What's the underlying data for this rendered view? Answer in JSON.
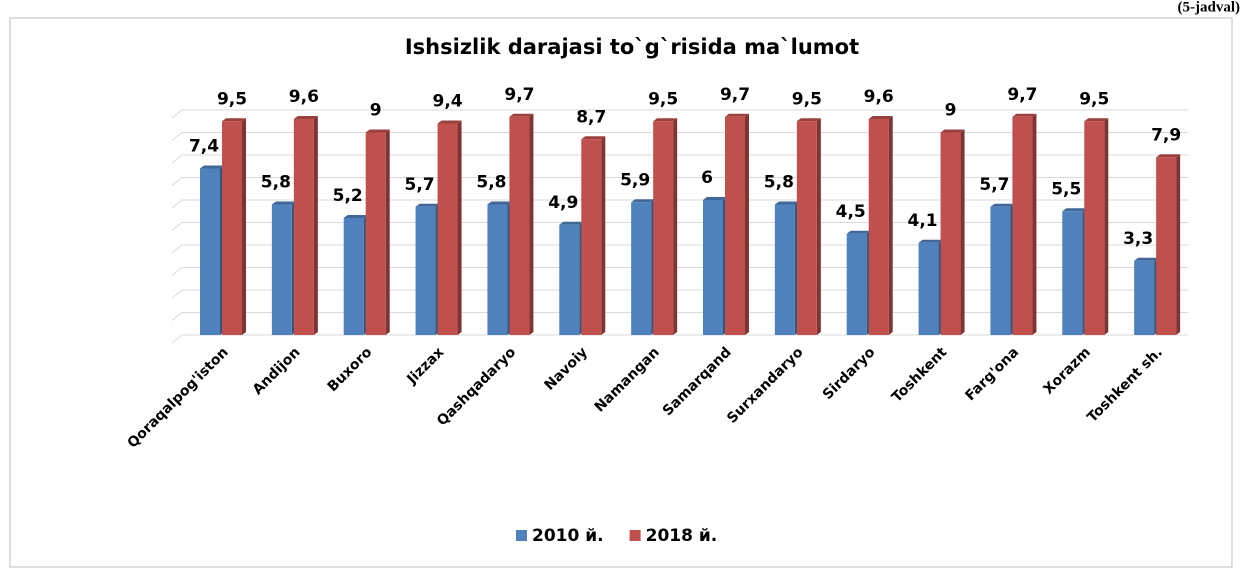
{
  "chart_data": {
    "type": "bar",
    "caption": "(5-jadval)",
    "title": "Ishsizlik darajasi to`g`risida ma`lumot",
    "categories": [
      "Qoraqalpog'iston",
      "Andijon",
      "Buxoro",
      "Jizzax",
      "Qashqadaryo",
      "Navoiy",
      "Namangan",
      "Samarqand",
      "Surxandaryo",
      "Sirdaryo",
      "Toshkent",
      "Farg'ona",
      "Xorazm",
      "Toshkent sh."
    ],
    "series": [
      {
        "name": "2010 й.",
        "color": "#4f81bd",
        "values": [
          7.4,
          5.8,
          5.2,
          5.7,
          5.8,
          4.9,
          5.9,
          6,
          5.8,
          4.5,
          4.1,
          5.7,
          5.5,
          3.3
        ],
        "value_labels": [
          "7,4",
          "5,8",
          "5,2",
          "5,7",
          "5,8",
          "4,9",
          "5,9",
          "6",
          "5,8",
          "4,5",
          "4,1",
          "5,7",
          "5,5",
          "3,3"
        ]
      },
      {
        "name": "2018 й.",
        "color": "#c0504d",
        "values": [
          9.5,
          9.6,
          9,
          9.4,
          9.7,
          8.7,
          9.5,
          9.7,
          9.5,
          9.6,
          9,
          9.7,
          9.5,
          7.9
        ],
        "value_labels": [
          "9,5",
          "9,6",
          "9",
          "9,4",
          "9,7",
          "8,7",
          "9,5",
          "9,7",
          "9,5",
          "9,6",
          "9",
          "9,7",
          "9,5",
          "7,9"
        ]
      }
    ],
    "ylim": [
      0,
      10
    ],
    "yticks": [
      0,
      1,
      2,
      3,
      4,
      5,
      6,
      7,
      8,
      9,
      10
    ],
    "grid": true,
    "legend": "bottom"
  }
}
